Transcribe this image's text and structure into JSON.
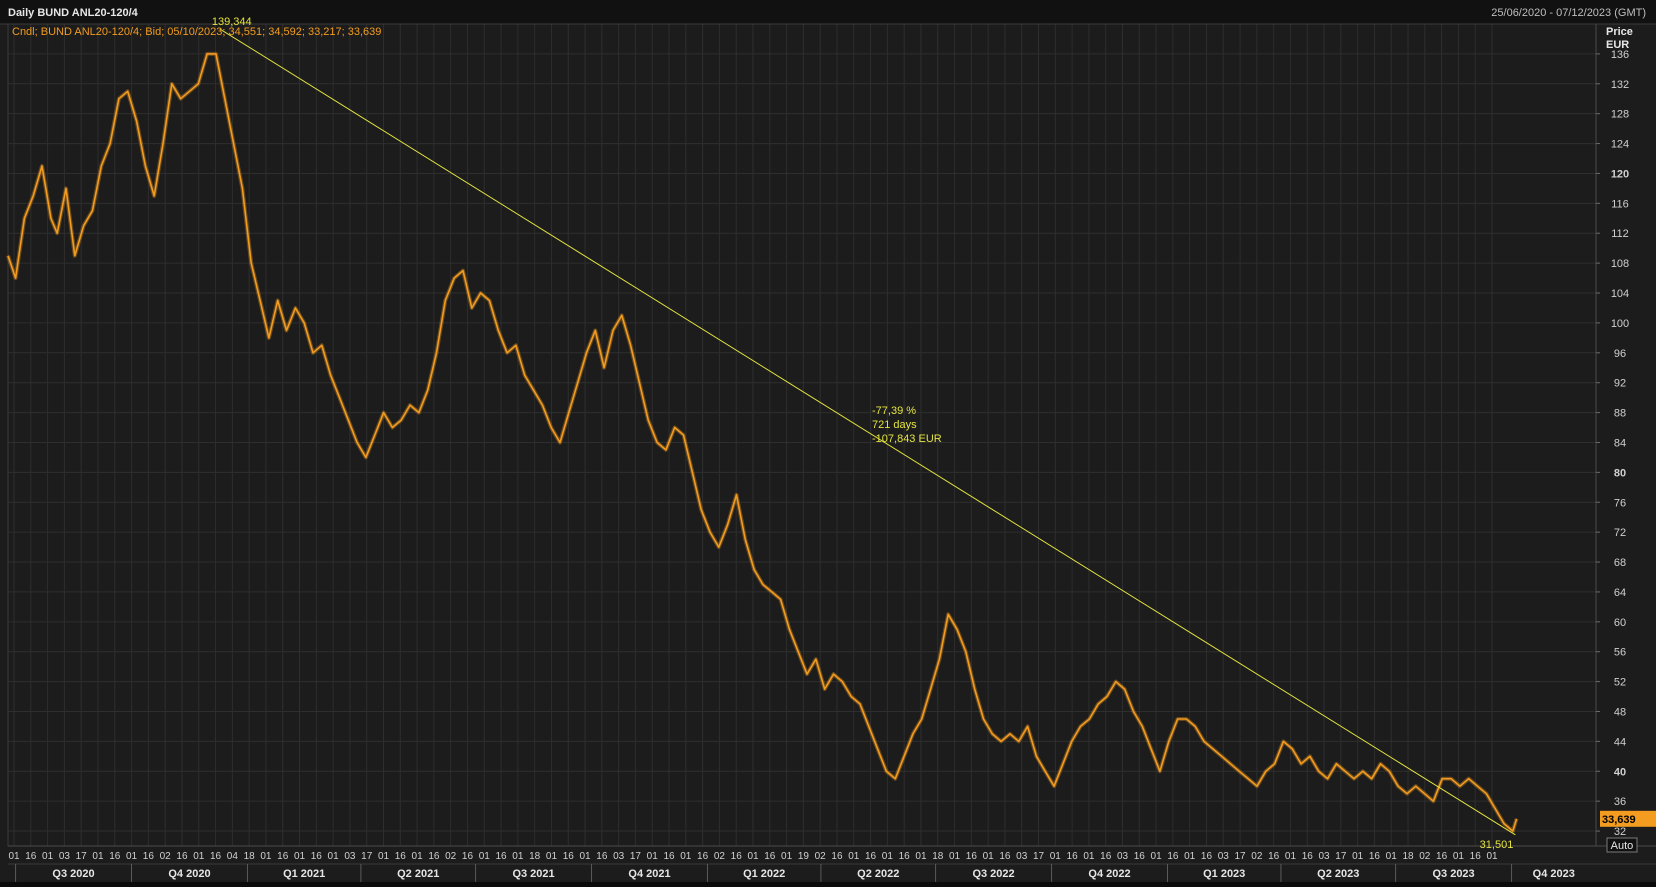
{
  "window": {
    "title": "Daily BUND ANL20-120/4",
    "date_range": "25/06/2020 - 07/12/2023 (GMT)"
  },
  "legend": {
    "text": "Cndl; BUND ANL20-120/4; Bid; 05/10/2023; 34,551; 34,592; 33,217; 33,639"
  },
  "price_axis": {
    "header": "Price",
    "currency": "EUR",
    "last_price": "33,639",
    "auto_label": "Auto"
  },
  "annotations": {
    "high_label": "139,344",
    "low_label": "31,501",
    "trend_pct": "-77,39 %",
    "trend_days": "721 days",
    "trend_eur": "-107,843 EUR"
  },
  "colors": {
    "background": "#1c1c1c",
    "grid": "#2e2e2e",
    "series": "#f39c1f",
    "trendline": "#e4e440",
    "axis_text": "#d0d0d0",
    "last_price_box": "#f39c1f"
  },
  "chart_data": {
    "type": "line",
    "title": "Daily BUND ANL20-120/4",
    "ylabel": "Price EUR",
    "ylim": [
      30,
      140
    ],
    "yticks": [
      32,
      36,
      40,
      44,
      48,
      52,
      56,
      60,
      64,
      68,
      72,
      76,
      80,
      84,
      88,
      92,
      96,
      100,
      104,
      108,
      112,
      116,
      120,
      124,
      128,
      132,
      136
    ],
    "ytick_bold": [
      40,
      80,
      120
    ],
    "xlim": [
      "2020-06-25",
      "2023-12-07"
    ],
    "x_day_labels": [
      "01",
      "16",
      "01",
      "03",
      "17",
      "01",
      "16",
      "01",
      "16",
      "02",
      "16",
      "01",
      "16",
      "04",
      "18",
      "01",
      "16",
      "01",
      "16",
      "01",
      "03",
      "17",
      "01",
      "16",
      "01",
      "16",
      "02",
      "16",
      "01",
      "16",
      "01",
      "18",
      "01",
      "16",
      "01",
      "16",
      "03",
      "17",
      "01",
      "16",
      "01",
      "16",
      "02",
      "16",
      "01",
      "16",
      "01",
      "19",
      "02",
      "16",
      "01",
      "16",
      "01",
      "16",
      "01",
      "18",
      "01",
      "16",
      "01",
      "16",
      "03",
      "17",
      "01",
      "16",
      "01",
      "16",
      "03",
      "16",
      "01",
      "16",
      "01",
      "16",
      "03",
      "17",
      "02",
      "16",
      "01",
      "16",
      "03",
      "17",
      "01",
      "16",
      "01",
      "18",
      "02",
      "16",
      "01",
      "16",
      "01"
    ],
    "quarters": [
      {
        "label": "Q3 2020",
        "date": "2020-07-01"
      },
      {
        "label": "Q4 2020",
        "date": "2020-10-01"
      },
      {
        "label": "Q1 2021",
        "date": "2021-01-01"
      },
      {
        "label": "Q2 2021",
        "date": "2021-04-01"
      },
      {
        "label": "Q3 2021",
        "date": "2021-07-01"
      },
      {
        "label": "Q4 2021",
        "date": "2021-10-01"
      },
      {
        "label": "Q1 2022",
        "date": "2022-01-01"
      },
      {
        "label": "Q2 2022",
        "date": "2022-04-01"
      },
      {
        "label": "Q3 2022",
        "date": "2022-07-01"
      },
      {
        "label": "Q4 2022",
        "date": "2022-10-01"
      },
      {
        "label": "Q1 2023",
        "date": "2023-01-01"
      },
      {
        "label": "Q2 2023",
        "date": "2023-04-01"
      },
      {
        "label": "Q3 2023",
        "date": "2023-07-01"
      },
      {
        "label": "Q4 2023",
        "date": "2023-10-01"
      }
    ],
    "series": [
      {
        "name": "BUND ANL20-120/4",
        "points": [
          [
            "2020-06-25",
            109
          ],
          [
            "2020-07-01",
            106
          ],
          [
            "2020-07-08",
            114
          ],
          [
            "2020-07-15",
            117
          ],
          [
            "2020-07-22",
            121
          ],
          [
            "2020-07-29",
            114
          ],
          [
            "2020-08-03",
            112
          ],
          [
            "2020-08-10",
            118
          ],
          [
            "2020-08-17",
            109
          ],
          [
            "2020-08-24",
            113
          ],
          [
            "2020-08-31",
            115
          ],
          [
            "2020-09-07",
            121
          ],
          [
            "2020-09-14",
            124
          ],
          [
            "2020-09-21",
            130
          ],
          [
            "2020-09-28",
            131
          ],
          [
            "2020-10-05",
            127
          ],
          [
            "2020-10-12",
            121
          ],
          [
            "2020-10-19",
            117
          ],
          [
            "2020-10-26",
            124
          ],
          [
            "2020-11-02",
            132
          ],
          [
            "2020-11-09",
            130
          ],
          [
            "2020-11-16",
            131
          ],
          [
            "2020-11-23",
            132
          ],
          [
            "2020-11-30",
            136
          ],
          [
            "2020-12-07",
            136
          ],
          [
            "2020-12-14",
            130
          ],
          [
            "2020-12-21",
            124
          ],
          [
            "2020-12-28",
            118
          ],
          [
            "2021-01-04",
            108
          ],
          [
            "2021-01-11",
            103
          ],
          [
            "2021-01-18",
            98
          ],
          [
            "2021-01-25",
            103
          ],
          [
            "2021-02-01",
            99
          ],
          [
            "2021-02-08",
            102
          ],
          [
            "2021-02-15",
            100
          ],
          [
            "2021-02-22",
            96
          ],
          [
            "2021-03-01",
            97
          ],
          [
            "2021-03-08",
            93
          ],
          [
            "2021-03-15",
            90
          ],
          [
            "2021-03-22",
            87
          ],
          [
            "2021-03-29",
            84
          ],
          [
            "2021-04-05",
            82
          ],
          [
            "2021-04-12",
            85
          ],
          [
            "2021-04-19",
            88
          ],
          [
            "2021-04-26",
            86
          ],
          [
            "2021-05-03",
            87
          ],
          [
            "2021-05-10",
            89
          ],
          [
            "2021-05-17",
            88
          ],
          [
            "2021-05-24",
            91
          ],
          [
            "2021-05-31",
            96
          ],
          [
            "2021-06-07",
            103
          ],
          [
            "2021-06-14",
            106
          ],
          [
            "2021-06-21",
            107
          ],
          [
            "2021-06-28",
            102
          ],
          [
            "2021-07-05",
            104
          ],
          [
            "2021-07-12",
            103
          ],
          [
            "2021-07-19",
            99
          ],
          [
            "2021-07-26",
            96
          ],
          [
            "2021-08-02",
            97
          ],
          [
            "2021-08-09",
            93
          ],
          [
            "2021-08-16",
            91
          ],
          [
            "2021-08-23",
            89
          ],
          [
            "2021-08-30",
            86
          ],
          [
            "2021-09-06",
            84
          ],
          [
            "2021-09-13",
            88
          ],
          [
            "2021-09-20",
            92
          ],
          [
            "2021-09-27",
            96
          ],
          [
            "2021-10-04",
            99
          ],
          [
            "2021-10-11",
            94
          ],
          [
            "2021-10-18",
            99
          ],
          [
            "2021-10-25",
            101
          ],
          [
            "2021-11-01",
            97
          ],
          [
            "2021-11-08",
            92
          ],
          [
            "2021-11-15",
            87
          ],
          [
            "2021-11-22",
            84
          ],
          [
            "2021-11-29",
            83
          ],
          [
            "2021-12-06",
            86
          ],
          [
            "2021-12-13",
            85
          ],
          [
            "2021-12-20",
            80
          ],
          [
            "2021-12-27",
            75
          ],
          [
            "2022-01-03",
            72
          ],
          [
            "2022-01-10",
            70
          ],
          [
            "2022-01-17",
            73
          ],
          [
            "2022-01-24",
            77
          ],
          [
            "2022-01-31",
            71
          ],
          [
            "2022-02-07",
            67
          ],
          [
            "2022-02-14",
            65
          ],
          [
            "2022-02-21",
            64
          ],
          [
            "2022-02-28",
            63
          ],
          [
            "2022-03-07",
            59
          ],
          [
            "2022-03-14",
            56
          ],
          [
            "2022-03-21",
            53
          ],
          [
            "2022-03-28",
            55
          ],
          [
            "2022-04-04",
            51
          ],
          [
            "2022-04-11",
            53
          ],
          [
            "2022-04-18",
            52
          ],
          [
            "2022-04-25",
            50
          ],
          [
            "2022-05-02",
            49
          ],
          [
            "2022-05-09",
            46
          ],
          [
            "2022-05-16",
            43
          ],
          [
            "2022-05-23",
            40
          ],
          [
            "2022-05-30",
            39
          ],
          [
            "2022-06-06",
            42
          ],
          [
            "2022-06-13",
            45
          ],
          [
            "2022-06-20",
            47
          ],
          [
            "2022-06-27",
            51
          ],
          [
            "2022-07-04",
            55
          ],
          [
            "2022-07-11",
            61
          ],
          [
            "2022-07-18",
            59
          ],
          [
            "2022-07-25",
            56
          ],
          [
            "2022-08-01",
            51
          ],
          [
            "2022-08-08",
            47
          ],
          [
            "2022-08-15",
            45
          ],
          [
            "2022-08-22",
            44
          ],
          [
            "2022-08-29",
            45
          ],
          [
            "2022-09-05",
            44
          ],
          [
            "2022-09-12",
            46
          ],
          [
            "2022-09-19",
            42
          ],
          [
            "2022-09-26",
            40
          ],
          [
            "2022-10-03",
            38
          ],
          [
            "2022-10-10",
            41
          ],
          [
            "2022-10-17",
            44
          ],
          [
            "2022-10-24",
            46
          ],
          [
            "2022-10-31",
            47
          ],
          [
            "2022-11-07",
            49
          ],
          [
            "2022-11-14",
            50
          ],
          [
            "2022-11-21",
            52
          ],
          [
            "2022-11-28",
            51
          ],
          [
            "2022-12-05",
            48
          ],
          [
            "2022-12-12",
            46
          ],
          [
            "2022-12-19",
            43
          ],
          [
            "2022-12-26",
            40
          ],
          [
            "2023-01-02",
            44
          ],
          [
            "2023-01-09",
            47
          ],
          [
            "2023-01-16",
            47
          ],
          [
            "2023-01-23",
            46
          ],
          [
            "2023-01-30",
            44
          ],
          [
            "2023-02-06",
            43
          ],
          [
            "2023-02-13",
            42
          ],
          [
            "2023-02-20",
            41
          ],
          [
            "2023-02-27",
            40
          ],
          [
            "2023-03-06",
            39
          ],
          [
            "2023-03-13",
            38
          ],
          [
            "2023-03-20",
            40
          ],
          [
            "2023-03-27",
            41
          ],
          [
            "2023-04-03",
            44
          ],
          [
            "2023-04-10",
            43
          ],
          [
            "2023-04-17",
            41
          ],
          [
            "2023-04-24",
            42
          ],
          [
            "2023-05-01",
            40
          ],
          [
            "2023-05-08",
            39
          ],
          [
            "2023-05-15",
            41
          ],
          [
            "2023-05-22",
            40
          ],
          [
            "2023-05-29",
            39
          ],
          [
            "2023-06-05",
            40
          ],
          [
            "2023-06-12",
            39
          ],
          [
            "2023-06-19",
            41
          ],
          [
            "2023-06-26",
            40
          ],
          [
            "2023-07-03",
            38
          ],
          [
            "2023-07-10",
            37
          ],
          [
            "2023-07-17",
            38
          ],
          [
            "2023-07-24",
            37
          ],
          [
            "2023-07-31",
            36
          ],
          [
            "2023-08-07",
            39
          ],
          [
            "2023-08-14",
            39
          ],
          [
            "2023-08-21",
            38
          ],
          [
            "2023-08-28",
            39
          ],
          [
            "2023-09-04",
            38
          ],
          [
            "2023-09-11",
            37
          ],
          [
            "2023-09-18",
            35
          ],
          [
            "2023-09-25",
            33
          ],
          [
            "2023-10-02",
            32
          ],
          [
            "2023-10-05",
            33.639
          ]
        ]
      }
    ],
    "trendline": {
      "from": [
        "2020-12-10",
        139.344
      ],
      "to": [
        "2023-10-04",
        31.501
      ]
    }
  }
}
